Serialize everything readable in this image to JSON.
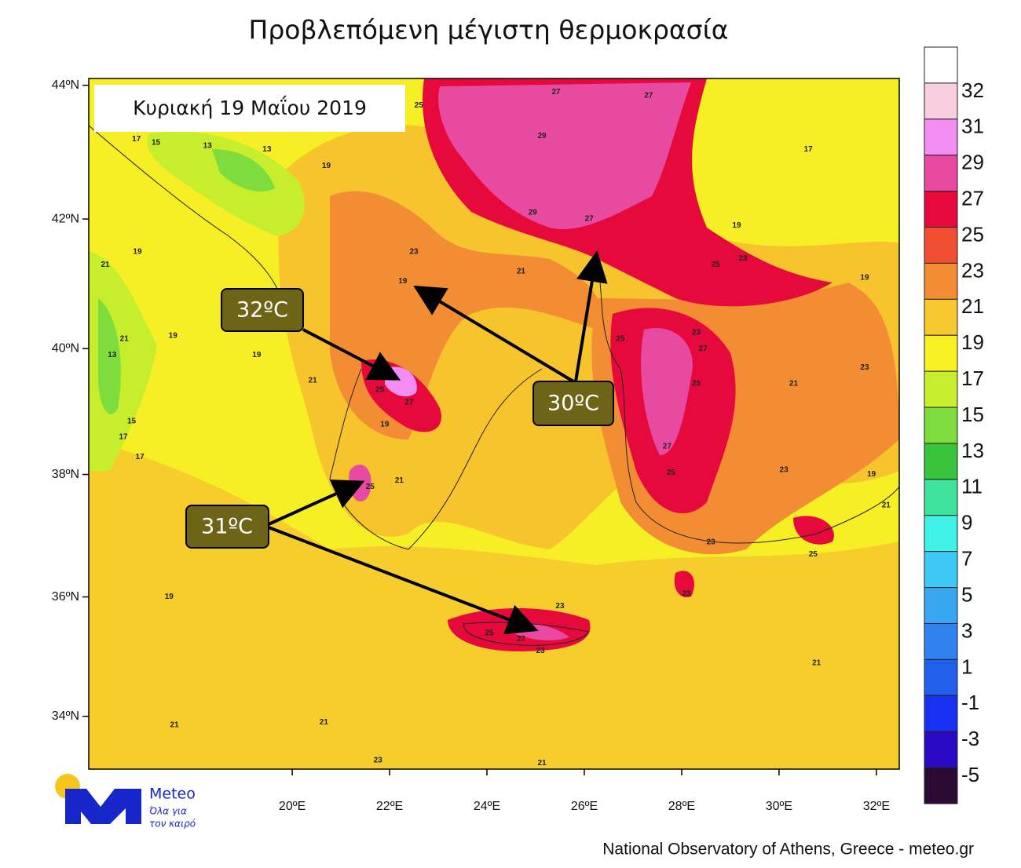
{
  "title": "Προβλεπόμενη μέγιστη θερμοκρασία",
  "date_label": "Κυριακή 19 Μαΐου 2019",
  "map": {
    "xlim": [
      15.82,
      32.47
    ],
    "ylim": [
      33.1,
      44.1
    ],
    "lat_ticks": [
      {
        "value": 44,
        "label": "44ºN"
      },
      {
        "value": 42,
        "label": "42ºN"
      },
      {
        "value": 40,
        "label": "40ºN"
      },
      {
        "value": 38,
        "label": "38ºN"
      },
      {
        "value": 36,
        "label": "36ºN"
      },
      {
        "value": 34,
        "label": "34ºN"
      }
    ],
    "lon_ticks": [
      {
        "value": 20,
        "label": "20ºE"
      },
      {
        "value": 22,
        "label": "22ºE"
      },
      {
        "value": 24,
        "label": "24ºE"
      },
      {
        "value": 26,
        "label": "26ºE"
      },
      {
        "value": 28,
        "label": "28ºE"
      },
      {
        "value": 30,
        "label": "30ºE"
      },
      {
        "value": 32,
        "label": "32ºE"
      }
    ],
    "contour_labels": [
      {
        "value": 25,
        "lon": 22.6,
        "lat": 43.7
      },
      {
        "value": 27,
        "lon": 25.42,
        "lat": 43.9
      },
      {
        "value": 27,
        "lon": 27.32,
        "lat": 43.85
      },
      {
        "value": 29,
        "lon": 25.13,
        "lat": 43.25
      },
      {
        "value": 17,
        "lon": 16.8,
        "lat": 43.2
      },
      {
        "value": 15,
        "lon": 17.2,
        "lat": 43.15
      },
      {
        "value": 13,
        "lon": 18.26,
        "lat": 43.1
      },
      {
        "value": 13,
        "lon": 19.48,
        "lat": 43.05
      },
      {
        "value": 19,
        "lon": 20.7,
        "lat": 42.8
      },
      {
        "value": 17,
        "lon": 30.6,
        "lat": 43.05
      },
      {
        "value": 29,
        "lon": 24.94,
        "lat": 42.1
      },
      {
        "value": 27,
        "lon": 26.1,
        "lat": 42.0
      },
      {
        "value": 19,
        "lon": 29.13,
        "lat": 41.9
      },
      {
        "value": 21,
        "lon": 16.16,
        "lat": 41.3
      },
      {
        "value": 19,
        "lon": 16.82,
        "lat": 41.5
      },
      {
        "value": 23,
        "lon": 22.5,
        "lat": 41.5
      },
      {
        "value": 19,
        "lon": 22.27,
        "lat": 41.05
      },
      {
        "value": 21,
        "lon": 24.7,
        "lat": 41.2
      },
      {
        "value": 25,
        "lon": 28.7,
        "lat": 41.3
      },
      {
        "value": 23,
        "lon": 29.26,
        "lat": 41.4
      },
      {
        "value": 19,
        "lon": 31.76,
        "lat": 41.1
      },
      {
        "value": 21,
        "lon": 16.55,
        "lat": 40.15
      },
      {
        "value": 13,
        "lon": 16.3,
        "lat": 39.9
      },
      {
        "value": 19,
        "lon": 17.55,
        "lat": 40.2
      },
      {
        "value": 19,
        "lon": 19.27,
        "lat": 39.9
      },
      {
        "value": 25,
        "lon": 21.8,
        "lat": 39.35
      },
      {
        "value": 27,
        "lon": 22.4,
        "lat": 39.15
      },
      {
        "value": 27,
        "lon": 28.44,
        "lat": 40.0
      },
      {
        "value": 25,
        "lon": 28.3,
        "lat": 39.45
      },
      {
        "value": 23,
        "lon": 31.76,
        "lat": 39.7
      },
      {
        "value": 21,
        "lon": 30.3,
        "lat": 39.45
      },
      {
        "value": 15,
        "lon": 16.7,
        "lat": 38.85
      },
      {
        "value": 17,
        "lon": 16.53,
        "lat": 38.6
      },
      {
        "value": 17,
        "lon": 16.87,
        "lat": 38.28
      },
      {
        "value": 21,
        "lon": 20.42,
        "lat": 39.5
      },
      {
        "value": 19,
        "lon": 21.9,
        "lat": 38.8
      },
      {
        "value": 25,
        "lon": 21.6,
        "lat": 37.8
      },
      {
        "value": 21,
        "lon": 22.2,
        "lat": 37.9
      },
      {
        "value": 27,
        "lon": 27.7,
        "lat": 38.45
      },
      {
        "value": 25,
        "lon": 27.78,
        "lat": 38.03
      },
      {
        "value": 23,
        "lon": 30.1,
        "lat": 38.07
      },
      {
        "value": 19,
        "lon": 31.9,
        "lat": 38.0
      },
      {
        "value": 21,
        "lon": 32.2,
        "lat": 37.5
      },
      {
        "value": 23,
        "lon": 28.6,
        "lat": 36.9
      },
      {
        "value": 25,
        "lon": 30.7,
        "lat": 36.7
      },
      {
        "value": 23,
        "lon": 28.1,
        "lat": 36.05
      },
      {
        "value": 19,
        "lon": 17.47,
        "lat": 36.0
      },
      {
        "value": 23,
        "lon": 25.5,
        "lat": 35.85
      },
      {
        "value": 25,
        "lon": 24.05,
        "lat": 35.4
      },
      {
        "value": 27,
        "lon": 24.7,
        "lat": 35.3
      },
      {
        "value": 23,
        "lon": 25.1,
        "lat": 35.1
      },
      {
        "value": 21,
        "lon": 30.77,
        "lat": 34.9
      },
      {
        "value": 21,
        "lon": 17.58,
        "lat": 33.85
      },
      {
        "value": 21,
        "lon": 20.65,
        "lat": 33.9
      },
      {
        "value": 23,
        "lon": 21.76,
        "lat": 33.25
      },
      {
        "value": 21,
        "lon": 25.13,
        "lat": 33.2
      },
      {
        "value": 25,
        "lon": 26.74,
        "lat": 40.15
      },
      {
        "value": 23,
        "lon": 28.3,
        "lat": 40.25
      }
    ]
  },
  "annotations": [
    "32ºC",
    "30ºC",
    "31ºC"
  ],
  "colorbar": {
    "levels": [
      32,
      31,
      29,
      27,
      25,
      23,
      21,
      19,
      17,
      15,
      13,
      11,
      9,
      7,
      5,
      3,
      1,
      -1,
      -3,
      -5
    ],
    "colors": [
      "#ffffff",
      "#f8cfdf",
      "#f38cf3",
      "#e84aa2",
      "#e6093b",
      "#f04e32",
      "#f28d34",
      "#f7c92e",
      "#f7f022",
      "#c6ee2d",
      "#7edc3c",
      "#38c43a",
      "#3fe39c",
      "#40f3e6",
      "#3dc9f3",
      "#39a6f2",
      "#2e83ef",
      "#2160ea",
      "#1830ef",
      "#2a0bc3",
      "#2b0a33"
    ]
  },
  "logo": {
    "name": "Meteo",
    "slogan_1": "Όλα για",
    "slogan_2": "τον καιρό"
  },
  "footer": "National Observatory of Athens, Greece - meteo.gr"
}
